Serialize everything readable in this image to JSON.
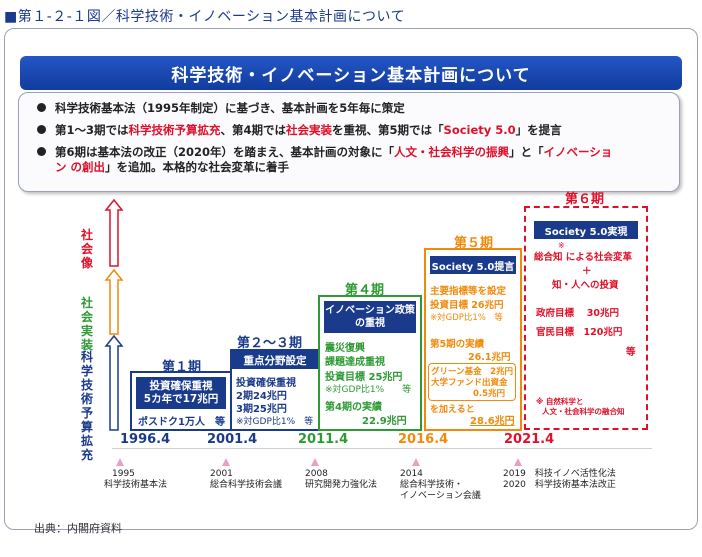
{
  "figure_title": "■第１-２-１図／科学技術・イノベーション基本計画について",
  "banner_title": "科学技術・イノベーション基本計画について",
  "bullets": [
    {
      "text": "科学技術基本法（1995年制定）に基づき、基本計画を5年毎に策定"
    },
    {
      "parts": [
        "第1～3期では",
        "科学技術予算拡充",
        "、第4期では",
        "社会実装",
        "を重視、第5期では「",
        "Society 5.0",
        "」を提言"
      ]
    },
    {
      "parts": [
        "第6期は基本法の改正（2020年）を踏まえ、基本計画の対象に「",
        "人文・社会科学の振興",
        "」と「",
        "イノベーショ",
        "ン の創出",
        "」を追加。本格的な社会変革に着手"
      ]
    }
  ],
  "left_axis": {
    "red": "社会像",
    "green": "社会実装",
    "navy": "科学技術予算拡充"
  },
  "periods": [
    {
      "label": "第１期",
      "header": "投資確保重視\n5カ年で17兆円",
      "lines": [
        "ポスドク1万人　等"
      ],
      "year": "1996.4"
    },
    {
      "label": "第２～３期",
      "header": "重点分野設定",
      "lines": [
        "投資確保重視",
        "2期24兆円",
        "3期25兆円",
        "※対GDP比1%　等"
      ],
      "year": "2001.4"
    },
    {
      "label": "第４期",
      "header": "イノベーション政策\nの重視",
      "lines": [
        "震災復興",
        "課題達成重視",
        "投資目標 25兆円",
        "※対GDP比1%　　等",
        "第4期の実績",
        "22.9兆円"
      ],
      "year": "2011.4"
    },
    {
      "label": "第５期",
      "header": "Society 5.0提言",
      "lines": [
        "主要指標等を設定",
        "投資目標 26兆円",
        "※対GDP比1%　等",
        "第5期の実績",
        "26.1兆円",
        "グリーン基金　2兆円",
        "大学ファンド出資金",
        "0.5兆円",
        "を加えると",
        "28.6兆円"
      ],
      "year": "2016.4"
    },
    {
      "label": "第６期",
      "header": "Society 5.0実現",
      "lines": [
        "総合知 による社会変革",
        "＋",
        "知・人への投資",
        "政府目標　 30兆円",
        "官民目標　120兆円",
        "等",
        "※ 自然科学と",
        "人文・社会科学の融合知"
      ],
      "year": "2021.4",
      "mark": "※"
    }
  ],
  "timeline_notes": [
    {
      "year": "1995",
      "text": "科学技術基本法"
    },
    {
      "year": "2001",
      "text": "総合科学技術会議"
    },
    {
      "year": "2008",
      "text": "研究開発力強化法"
    },
    {
      "year": "2014",
      "text": "総合科学技術・\nイノベーション会議"
    },
    {
      "year": "2019　科技イノベ活性化法",
      "text": "2020　科学技術基本法改正"
    }
  ],
  "source": "出典：内閣府資料",
  "colors": {
    "navy": "#1a3a8c",
    "green": "#2e9a34",
    "orange": "#f08a0c",
    "red": "#e0102a",
    "banner": "#1f4fb8"
  }
}
